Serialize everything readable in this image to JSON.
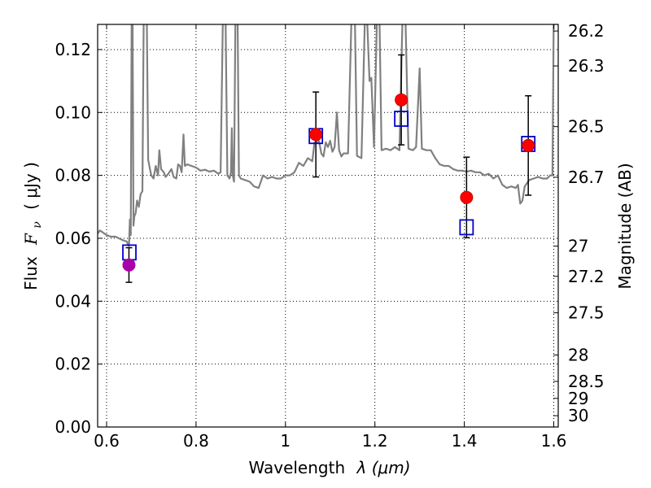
{
  "chart_data": {
    "type": "scatter",
    "xlabel_text": "Wavelength",
    "xlabel_math": "λ (μm)",
    "ylabel_text": "Flux",
    "ylabel_math": "F",
    "ylabel_sub": "ν",
    "ylabel_unit": "( μJy )",
    "y2label": "Magnitude (AB)",
    "xlim": [
      0.58,
      1.61
    ],
    "ylim": [
      0.0,
      0.128
    ],
    "grid": true,
    "x_ticks": [
      {
        "value": 0.6,
        "label": "0.6"
      },
      {
        "value": 0.8,
        "label": "0.8"
      },
      {
        "value": 1.0,
        "label": "1"
      },
      {
        "value": 1.2,
        "label": "1.2"
      },
      {
        "value": 1.4,
        "label": "1.4"
      },
      {
        "value": 1.6,
        "label": "1.6"
      }
    ],
    "y_ticks": [
      {
        "value": 0.0,
        "label": "0.00"
      },
      {
        "value": 0.02,
        "label": "0.02"
      },
      {
        "value": 0.04,
        "label": "0.04"
      },
      {
        "value": 0.06,
        "label": "0.06"
      },
      {
        "value": 0.08,
        "label": "0.08"
      },
      {
        "value": 0.1,
        "label": "0.10"
      },
      {
        "value": 0.12,
        "label": "0.12"
      }
    ],
    "y2_ticks": [
      {
        "flux": 0.1259,
        "label": "26.2"
      },
      {
        "flux": 0.1148,
        "label": "26.3"
      },
      {
        "flux": 0.0955,
        "label": "26.5"
      },
      {
        "flux": 0.0794,
        "label": "26.7"
      },
      {
        "flux": 0.0575,
        "label": "27"
      },
      {
        "flux": 0.0479,
        "label": "27.2"
      },
      {
        "flux": 0.0363,
        "label": "27.5"
      },
      {
        "flux": 0.0229,
        "label": "28"
      },
      {
        "flux": 0.0145,
        "label": "28.5"
      },
      {
        "flux": 0.0091,
        "label": "29"
      },
      {
        "flux": 0.0036,
        "label": "30"
      }
    ],
    "colors": {
      "spectrum": "#808080",
      "photometry": "#ff0000",
      "photometry_edge": "#cc0000",
      "photometry_blue_band": "#aa00aa",
      "model": "#0000cc",
      "errorbar": "#000000"
    },
    "spectrum": [
      [
        0.58,
        0.0615
      ],
      [
        0.585,
        0.0625
      ],
      [
        0.59,
        0.062
      ],
      [
        0.6,
        0.061
      ],
      [
        0.61,
        0.0605
      ],
      [
        0.62,
        0.0605
      ],
      [
        0.63,
        0.0598
      ],
      [
        0.64,
        0.0592
      ],
      [
        0.645,
        0.059
      ],
      [
        0.648,
        0.058
      ],
      [
        0.65,
        0.0575
      ],
      [
        0.652,
        0.066
      ],
      [
        0.654,
        0.061
      ],
      [
        0.656,
        0.13
      ],
      [
        0.658,
        0.13
      ],
      [
        0.66,
        0.064
      ],
      [
        0.662,
        0.067
      ],
      [
        0.665,
        0.068
      ],
      [
        0.668,
        0.072
      ],
      [
        0.672,
        0.07
      ],
      [
        0.676,
        0.074
      ],
      [
        0.68,
        0.075
      ],
      [
        0.683,
        0.13
      ],
      [
        0.69,
        0.13
      ],
      [
        0.693,
        0.085
      ],
      [
        0.697,
        0.082
      ],
      [
        0.7,
        0.08
      ],
      [
        0.705,
        0.079
      ],
      [
        0.71,
        0.083
      ],
      [
        0.715,
        0.08
      ],
      [
        0.718,
        0.088
      ],
      [
        0.722,
        0.082
      ],
      [
        0.728,
        0.081
      ],
      [
        0.732,
        0.0795
      ],
      [
        0.738,
        0.0805
      ],
      [
        0.745,
        0.082
      ],
      [
        0.75,
        0.0795
      ],
      [
        0.756,
        0.079
      ],
      [
        0.76,
        0.0835
      ],
      [
        0.764,
        0.083
      ],
      [
        0.768,
        0.081
      ],
      [
        0.772,
        0.093
      ],
      [
        0.775,
        0.083
      ],
      [
        0.78,
        0.0835
      ],
      [
        0.79,
        0.083
      ],
      [
        0.8,
        0.0825
      ],
      [
        0.81,
        0.0815
      ],
      [
        0.82,
        0.0818
      ],
      [
        0.83,
        0.0812
      ],
      [
        0.84,
        0.0815
      ],
      [
        0.85,
        0.0805
      ],
      [
        0.855,
        0.081
      ],
      [
        0.86,
        0.13
      ],
      [
        0.866,
        0.13
      ],
      [
        0.87,
        0.08
      ],
      [
        0.875,
        0.079
      ],
      [
        0.878,
        0.081
      ],
      [
        0.88,
        0.095
      ],
      [
        0.882,
        0.08
      ],
      [
        0.885,
        0.078
      ],
      [
        0.888,
        0.13
      ],
      [
        0.893,
        0.13
      ],
      [
        0.896,
        0.08
      ],
      [
        0.9,
        0.079
      ],
      [
        0.91,
        0.0785
      ],
      [
        0.92,
        0.078
      ],
      [
        0.93,
        0.0765
      ],
      [
        0.94,
        0.076
      ],
      [
        0.95,
        0.08
      ],
      [
        0.96,
        0.079
      ],
      [
        0.97,
        0.0795
      ],
      [
        0.98,
        0.079
      ],
      [
        0.99,
        0.079
      ],
      [
        1.0,
        0.08
      ],
      [
        1.01,
        0.08
      ],
      [
        1.02,
        0.081
      ],
      [
        1.03,
        0.084
      ],
      [
        1.04,
        0.083
      ],
      [
        1.05,
        0.0855
      ],
      [
        1.06,
        0.0845
      ],
      [
        1.065,
        0.0905
      ],
      [
        1.07,
        0.0905
      ],
      [
        1.075,
        0.091
      ],
      [
        1.08,
        0.087
      ],
      [
        1.085,
        0.086
      ],
      [
        1.09,
        0.0905
      ],
      [
        1.095,
        0.089
      ],
      [
        1.1,
        0.091
      ],
      [
        1.105,
        0.0875
      ],
      [
        1.11,
        0.089
      ],
      [
        1.115,
        0.1
      ],
      [
        1.12,
        0.088
      ],
      [
        1.125,
        0.086
      ],
      [
        1.13,
        0.087
      ],
      [
        1.14,
        0.087
      ],
      [
        1.148,
        0.132
      ],
      [
        1.155,
        0.132
      ],
      [
        1.16,
        0.0862
      ],
      [
        1.17,
        0.0855
      ],
      [
        1.178,
        0.132
      ],
      [
        1.182,
        0.132
      ],
      [
        1.188,
        0.11
      ],
      [
        1.192,
        0.111
      ],
      [
        1.198,
        0.089
      ],
      [
        1.205,
        0.132
      ],
      [
        1.21,
        0.132
      ],
      [
        1.215,
        0.088
      ],
      [
        1.225,
        0.0885
      ],
      [
        1.235,
        0.088
      ],
      [
        1.245,
        0.089
      ],
      [
        1.255,
        0.088
      ],
      [
        1.262,
        0.132
      ],
      [
        1.268,
        0.132
      ],
      [
        1.275,
        0.0885
      ],
      [
        1.285,
        0.088
      ],
      [
        1.292,
        0.089
      ],
      [
        1.3,
        0.114
      ],
      [
        1.305,
        0.0885
      ],
      [
        1.315,
        0.088
      ],
      [
        1.325,
        0.088
      ],
      [
        1.335,
        0.0855
      ],
      [
        1.345,
        0.0835
      ],
      [
        1.355,
        0.083
      ],
      [
        1.365,
        0.083
      ],
      [
        1.375,
        0.082
      ],
      [
        1.385,
        0.0815
      ],
      [
        1.395,
        0.0815
      ],
      [
        1.405,
        0.0812
      ],
      [
        1.415,
        0.0815
      ],
      [
        1.425,
        0.081
      ],
      [
        1.435,
        0.081
      ],
      [
        1.445,
        0.08
      ],
      [
        1.455,
        0.0805
      ],
      [
        1.465,
        0.079
      ],
      [
        1.475,
        0.08
      ],
      [
        1.485,
        0.077
      ],
      [
        1.495,
        0.076
      ],
      [
        1.505,
        0.0765
      ],
      [
        1.515,
        0.076
      ],
      [
        1.52,
        0.077
      ],
      [
        1.525,
        0.071
      ],
      [
        1.53,
        0.072
      ],
      [
        1.535,
        0.0765
      ],
      [
        1.545,
        0.0785
      ],
      [
        1.555,
        0.079
      ],
      [
        1.565,
        0.0795
      ],
      [
        1.575,
        0.079
      ],
      [
        1.585,
        0.079
      ],
      [
        1.592,
        0.08
      ],
      [
        1.597,
        0.08
      ],
      [
        1.6,
        0.132
      ],
      [
        1.605,
        0.132
      ]
    ],
    "series": [
      {
        "name": "photometry",
        "points": [
          {
            "x": 0.65,
            "y": 0.0515,
            "err": 0.0055,
            "color": "#aa00aa"
          },
          {
            "x": 1.068,
            "y": 0.093,
            "err": 0.0135,
            "color": "#ff0000"
          },
          {
            "x": 1.259,
            "y": 0.104,
            "err": 0.0143,
            "color": "#ff0000"
          },
          {
            "x": 1.405,
            "y": 0.073,
            "err": 0.0128,
            "color": "#ff0000"
          },
          {
            "x": 1.543,
            "y": 0.0895,
            "err": 0.0158,
            "color": "#ff0000"
          }
        ]
      },
      {
        "name": "model",
        "points": [
          {
            "x": 0.651,
            "y": 0.0555
          },
          {
            "x": 1.068,
            "y": 0.0925
          },
          {
            "x": 1.259,
            "y": 0.098
          },
          {
            "x": 1.405,
            "y": 0.0635
          },
          {
            "x": 1.543,
            "y": 0.09
          }
        ]
      }
    ]
  }
}
